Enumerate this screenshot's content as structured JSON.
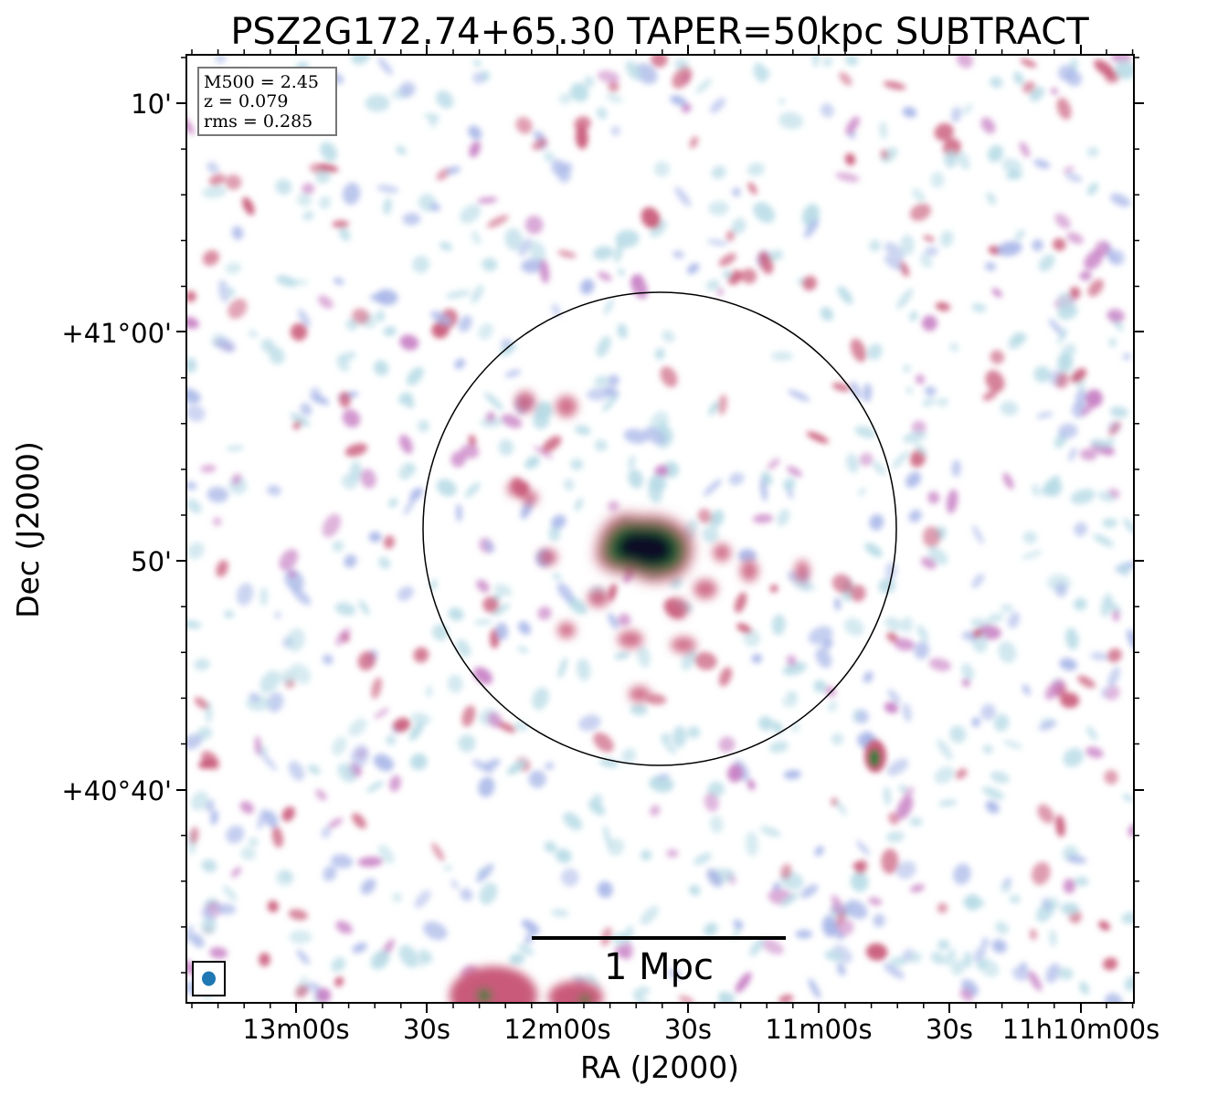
{
  "title": "PSZ2G172.74+65.30 TAPER=50kpc SUBTRACT",
  "info_box": {
    "m500": "M500 = 2.45",
    "z": "z = 0.079",
    "rms": "rms = 0.285"
  },
  "axes": {
    "xlabel": "RA (J2000)",
    "ylabel": "Dec (J2000)",
    "x_ticks": [
      "13m00s",
      "30s",
      "12m00s",
      "30s",
      "11m00s",
      "30s",
      "11h10m00s"
    ],
    "y_ticks": [
      "10'",
      "+41°00'",
      "50'",
      "+40°40'"
    ]
  },
  "scalebar": {
    "label": "1 Mpc"
  },
  "colors": {
    "faint": "#b8dbe6",
    "low": "#a9b7e8",
    "mid": "#c77fc4",
    "high": "#c95a7a",
    "peak": "#2f7a3c",
    "core": "#101028",
    "beam": "#1f77b4"
  }
}
